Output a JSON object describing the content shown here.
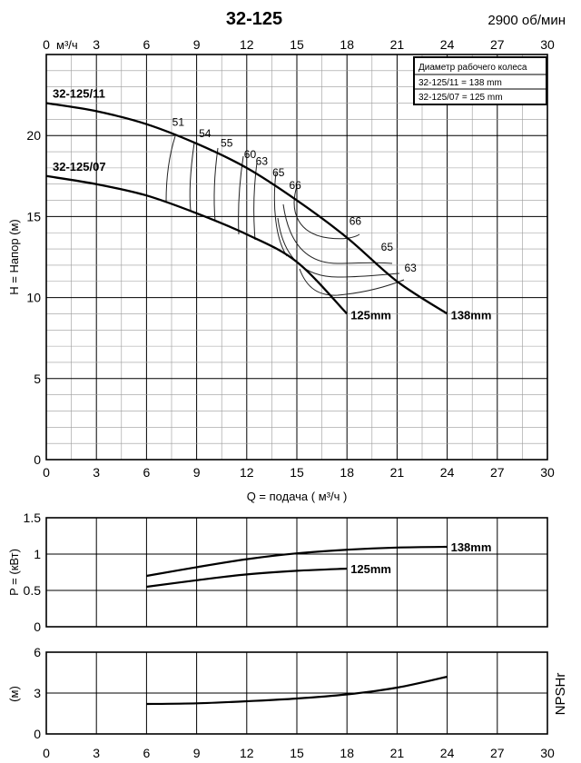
{
  "title": "32-125",
  "speed": "2900 об/мин",
  "top_unit": "м³/ч",
  "colors": {
    "curve": "#000000",
    "grid_major": "#000000",
    "grid_minor": "#9a9a9a",
    "iso": "#222222"
  },
  "legend": {
    "title": "Диаметр рабочего колеса",
    "rows": [
      "32-125/11 = 138 mm",
      "32-125/07 = 125 mm"
    ]
  },
  "chart_data": [
    {
      "id": "head",
      "type": "line",
      "title": "32-125",
      "xlabel": "Q = подача ( м³/ч )",
      "ylabel": "H = Напор (м)",
      "xlim": [
        0,
        30
      ],
      "ylim": [
        0,
        25
      ],
      "x_ticks": [
        "0",
        "3",
        "6",
        "9",
        "12",
        "15",
        "18",
        "21",
        "24",
        "27",
        "30"
      ],
      "y_ticks": [
        "0",
        "5",
        "10",
        "15",
        "20"
      ],
      "grid": true,
      "series": [
        {
          "name": "32-125/11",
          "end_label": "138mm",
          "x": [
            0,
            3,
            6,
            9,
            12,
            15,
            18,
            21,
            24
          ],
          "y": [
            22.0,
            21.5,
            20.7,
            19.5,
            18.0,
            16.0,
            13.7,
            11.0,
            9.0
          ]
        },
        {
          "name": "32-125/07",
          "end_label": "125mm",
          "x": [
            0,
            3,
            6,
            9,
            12,
            15,
            18
          ],
          "y": [
            17.5,
            17.0,
            16.3,
            15.2,
            13.9,
            12.2,
            9.0
          ]
        }
      ],
      "efficiency_labels": [
        {
          "text": "51",
          "x": 7.9,
          "y": 20.6
        },
        {
          "text": "54",
          "x": 9.5,
          "y": 19.9
        },
        {
          "text": "55",
          "x": 10.8,
          "y": 19.3
        },
        {
          "text": "60",
          "x": 12.2,
          "y": 18.6
        },
        {
          "text": "63",
          "x": 12.9,
          "y": 18.2
        },
        {
          "text": "65",
          "x": 13.9,
          "y": 17.5
        },
        {
          "text": "66",
          "x": 14.9,
          "y": 16.7
        },
        {
          "text": "66",
          "x": 18.5,
          "y": 14.5
        },
        {
          "text": "65",
          "x": 20.4,
          "y": 12.9
        },
        {
          "text": "63",
          "x": 21.8,
          "y": 11.6
        }
      ]
    },
    {
      "id": "power",
      "type": "line",
      "ylabel": "P = (кВт)",
      "xlim": [
        0,
        30
      ],
      "ylim": [
        0,
        1.5
      ],
      "y_ticks": [
        "0",
        "0.5",
        "1",
        "1.5"
      ],
      "grid": true,
      "series": [
        {
          "end_label": "138mm",
          "x": [
            6,
            9,
            12,
            15,
            18,
            21,
            24
          ],
          "y": [
            0.7,
            0.82,
            0.93,
            1.01,
            1.06,
            1.09,
            1.1
          ]
        },
        {
          "end_label": "125mm",
          "x": [
            6,
            9,
            12,
            15,
            18
          ],
          "y": [
            0.55,
            0.64,
            0.72,
            0.77,
            0.8
          ]
        }
      ]
    },
    {
      "id": "npsh",
      "type": "line",
      "ylabel": "(м)",
      "right_label": "NPSHr",
      "xlim": [
        0,
        30
      ],
      "ylim": [
        0,
        6
      ],
      "x_ticks": [
        "0",
        "3",
        "6",
        "9",
        "12",
        "15",
        "18",
        "21",
        "24",
        "27",
        "30"
      ],
      "y_ticks": [
        "0",
        "3",
        "6"
      ],
      "grid": true,
      "series": [
        {
          "x": [
            6,
            9,
            12,
            15,
            18,
            21,
            24
          ],
          "y": [
            2.2,
            2.25,
            2.4,
            2.6,
            2.9,
            3.4,
            4.2
          ]
        }
      ]
    }
  ]
}
